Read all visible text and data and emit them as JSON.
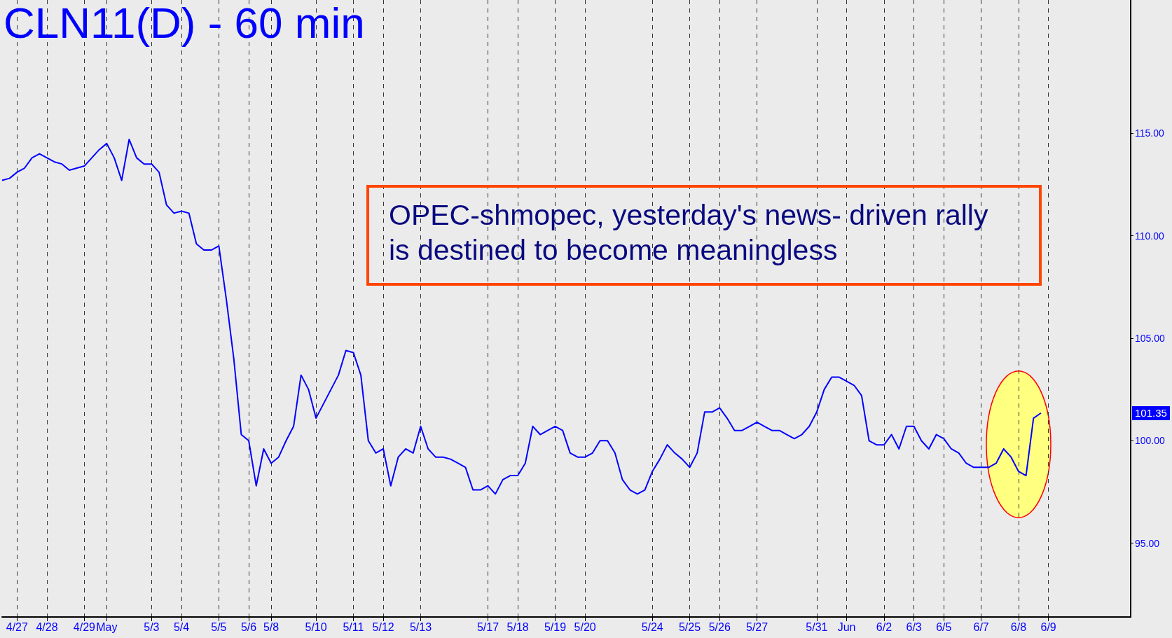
{
  "chart_data": {
    "type": "line",
    "title": "CLN11(D) - 60 min",
    "categories": [
      null,
      null,
      "4/27",
      null,
      null,
      null,
      "4/28",
      null,
      null,
      null,
      null,
      "4/29",
      null,
      null,
      "May",
      null,
      null,
      null,
      null,
      null,
      "5/3",
      null,
      null,
      null,
      "5/4",
      null,
      null,
      null,
      null,
      "5/5",
      null,
      null,
      null,
      "5/6",
      null,
      null,
      "5/8",
      null,
      null,
      null,
      null,
      null,
      "5/10",
      null,
      null,
      null,
      null,
      "5/11",
      null,
      null,
      null,
      "5/12",
      null,
      null,
      null,
      null,
      "5/13",
      null,
      null,
      null,
      null,
      null,
      null,
      null,
      null,
      "5/17",
      null,
      null,
      null,
      "5/18",
      null,
      null,
      null,
      null,
      "5/19",
      null,
      null,
      null,
      "5/20",
      null,
      null,
      null,
      null,
      null,
      null,
      null,
      null,
      "5/24",
      null,
      null,
      null,
      null,
      "5/25",
      null,
      null,
      null,
      "5/26",
      null,
      null,
      null,
      null,
      "5/27",
      null,
      null,
      null,
      null,
      null,
      null,
      null,
      "5/31",
      null,
      null,
      null,
      "Jun",
      null,
      null,
      null,
      null,
      "6/2",
      null,
      null,
      null,
      "6/3",
      null,
      null,
      null,
      "6/5",
      null,
      null,
      null,
      null,
      "6/7",
      null,
      null,
      null,
      null,
      "6/8",
      null,
      null,
      null,
      "6/9",
      null,
      null,
      null,
      null,
      null,
      null,
      null,
      null,
      null,
      null,
      null
    ],
    "series": [
      {
        "color": "#0000ff",
        "values": [
          112.7,
          112.8,
          113.1,
          113.3,
          113.8,
          114.0,
          113.8,
          113.6,
          113.5,
          113.2,
          113.3,
          113.4,
          113.8,
          114.2,
          114.5,
          113.8,
          112.7,
          114.7,
          113.8,
          113.5,
          113.5,
          113.1,
          111.5,
          111.1,
          111.2,
          111.1,
          109.6,
          109.3,
          109.3,
          109.5,
          106.9,
          104.0,
          100.3,
          100.0,
          97.8,
          99.6,
          98.9,
          99.2,
          100.0,
          100.7,
          103.2,
          102.5,
          101.1,
          101.8,
          102.5,
          103.2,
          104.4,
          104.3,
          103.2,
          100.0,
          99.4,
          99.6,
          97.8,
          99.2,
          99.6,
          99.4,
          100.7,
          99.6,
          99.2,
          99.2,
          99.1,
          98.9,
          98.7,
          97.6,
          97.6,
          97.8,
          97.4,
          98.1,
          98.3,
          98.3,
          98.9,
          100.7,
          100.3,
          100.5,
          100.7,
          100.5,
          99.4,
          99.2,
          99.2,
          99.4,
          100.0,
          100.0,
          99.4,
          98.1,
          97.6,
          97.4,
          97.6,
          98.5,
          99.1,
          99.8,
          99.4,
          99.1,
          98.7,
          99.4,
          101.4,
          101.4,
          101.6,
          101.1,
          100.5,
          100.5,
          100.7,
          100.9,
          100.7,
          100.5,
          100.5,
          100.3,
          100.1,
          100.3,
          100.7,
          101.4,
          102.5,
          103.1,
          103.1,
          102.9,
          102.7,
          102.2,
          100.0,
          99.8,
          99.8,
          100.3,
          99.6,
          100.7,
          100.7,
          100.0,
          99.6,
          100.3,
          100.1,
          99.6,
          99.4,
          98.9,
          98.7,
          98.7,
          98.7,
          98.9,
          99.6,
          99.2,
          98.5,
          98.3,
          101.1,
          101.35,
          null,
          null,
          null,
          null,
          null,
          null,
          null,
          null,
          null,
          null,
          null,
          null
        ]
      }
    ],
    "ylim": [
      91.4,
      121.5
    ],
    "yticks": [
      {
        "value": 95,
        "label": "95.00"
      },
      {
        "value": 100,
        "label": "100.00"
      },
      {
        "value": 105,
        "label": "105.00"
      },
      {
        "value": 110,
        "label": "110.00"
      },
      {
        "value": 115,
        "label": "115.00"
      }
    ],
    "grid": "x",
    "annotations": [
      "OPEC-shmopec, yesterday's news- driven rally is destined to become meaningless",
      "101.35"
    ]
  }
}
